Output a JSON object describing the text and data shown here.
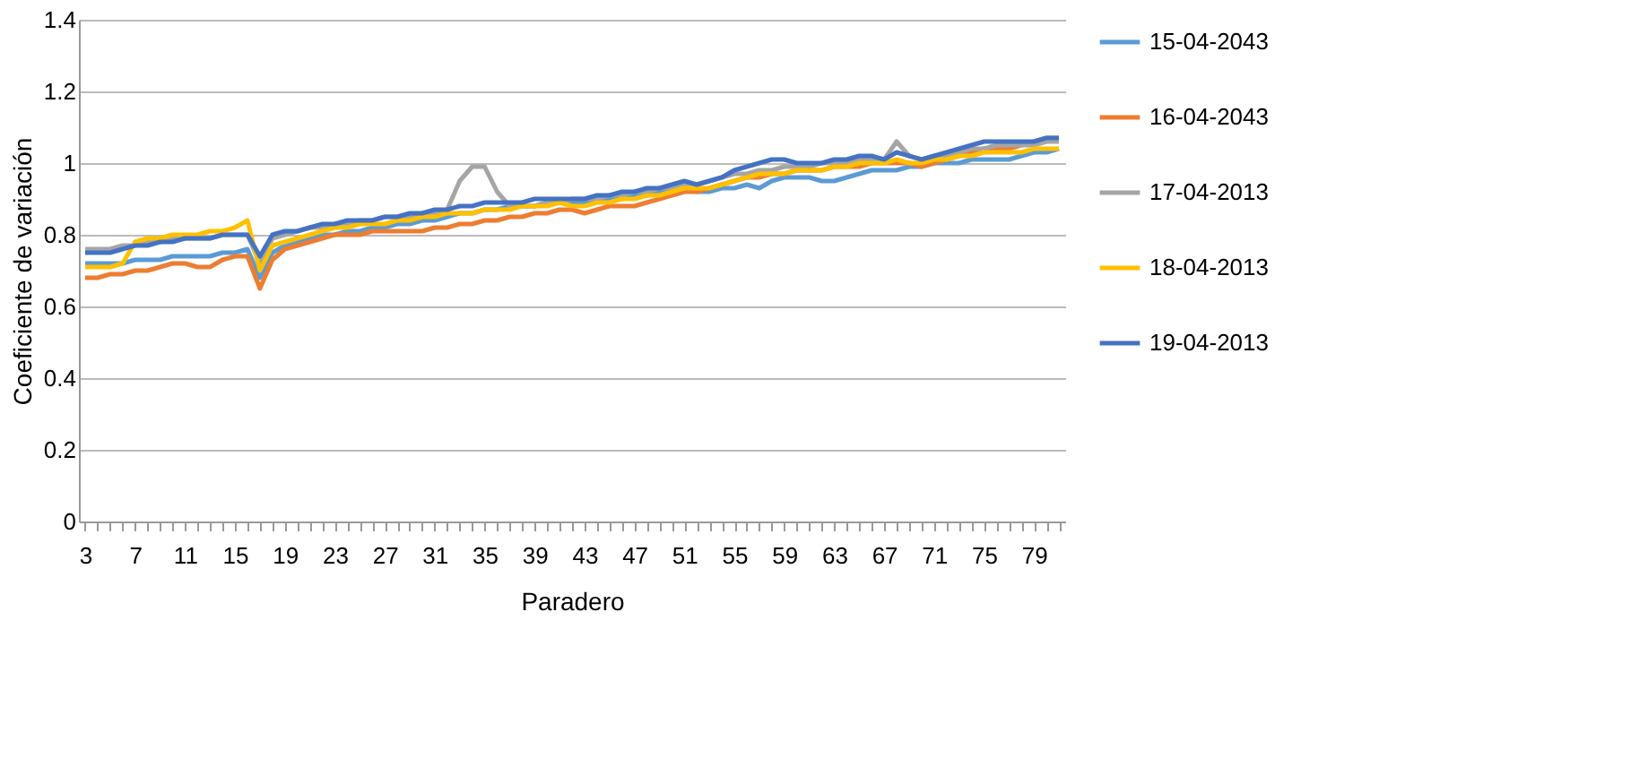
{
  "chart_data": {
    "type": "line",
    "xlabel": "Paradero",
    "ylabel": "Coeficiente de variación",
    "categories": [
      "3",
      null,
      null,
      null,
      "7",
      null,
      null,
      null,
      "11",
      null,
      null,
      null,
      "15",
      null,
      null,
      null,
      "19",
      null,
      null,
      null,
      "23",
      null,
      null,
      null,
      "27",
      null,
      null,
      null,
      "31",
      null,
      null,
      null,
      "35",
      null,
      null,
      null,
      "39",
      null,
      null,
      null,
      "43",
      null,
      null,
      null,
      "47",
      null,
      null,
      null,
      "51",
      null,
      null,
      null,
      "55",
      null,
      null,
      null,
      "59",
      null,
      null,
      null,
      "63",
      null,
      null,
      null,
      "67",
      null,
      null,
      null,
      "71",
      null,
      null,
      null,
      "75",
      null,
      null,
      null,
      "79",
      null,
      null
    ],
    "ylim": [
      0,
      1.4
    ],
    "yticks": [
      0,
      0.2,
      0.4,
      0.6,
      0.8,
      1,
      1.2,
      1.4
    ],
    "grid": "y",
    "legend": "right",
    "line_style": "solid",
    "marker": "none",
    "series": [
      {
        "name": "15-04-2043",
        "color": "#5b9bd5",
        "values": [
          0.72,
          0.72,
          0.72,
          0.72,
          0.73,
          0.73,
          0.73,
          0.74,
          0.74,
          0.74,
          0.74,
          0.75,
          0.75,
          0.76,
          0.68,
          0.75,
          0.77,
          0.78,
          0.79,
          0.8,
          0.8,
          0.81,
          0.81,
          0.82,
          0.82,
          0.83,
          0.83,
          0.84,
          0.84,
          0.85,
          0.86,
          0.86,
          0.87,
          0.87,
          0.88,
          0.88,
          0.88,
          0.89,
          0.89,
          0.89,
          0.89,
          0.9,
          0.9,
          0.9,
          0.91,
          0.91,
          0.92,
          0.92,
          0.93,
          0.92,
          0.92,
          0.93,
          0.93,
          0.94,
          0.93,
          0.95,
          0.96,
          0.96,
          0.96,
          0.95,
          0.95,
          0.96,
          0.97,
          0.98,
          0.98,
          0.98,
          0.99,
          0.99,
          1.0,
          1.0,
          1.0,
          1.01,
          1.01,
          1.01,
          1.01,
          1.02,
          1.03,
          1.03,
          1.04
        ]
      },
      {
        "name": "16-04-2043",
        "color": "#ed7d31",
        "values": [
          0.68,
          0.68,
          0.69,
          0.69,
          0.7,
          0.7,
          0.71,
          0.72,
          0.72,
          0.71,
          0.71,
          0.73,
          0.74,
          0.74,
          0.65,
          0.73,
          0.76,
          0.77,
          0.78,
          0.79,
          0.8,
          0.8,
          0.8,
          0.81,
          0.81,
          0.81,
          0.81,
          0.81,
          0.82,
          0.82,
          0.83,
          0.83,
          0.84,
          0.84,
          0.85,
          0.85,
          0.86,
          0.86,
          0.87,
          0.87,
          0.86,
          0.87,
          0.88,
          0.88,
          0.88,
          0.89,
          0.9,
          0.91,
          0.92,
          0.92,
          0.93,
          0.94,
          0.95,
          0.96,
          0.96,
          0.97,
          0.97,
          0.98,
          0.98,
          0.98,
          0.99,
          0.99,
          0.99,
          1.0,
          1.0,
          1.0,
          1.0,
          0.99,
          1.0,
          1.01,
          1.02,
          1.03,
          1.04,
          1.04,
          1.04,
          1.05,
          1.06,
          1.07,
          1.07
        ]
      },
      {
        "name": "17-04-2013",
        "color": "#a5a5a5",
        "values": [
          0.76,
          0.76,
          0.76,
          0.77,
          0.77,
          0.78,
          0.78,
          0.79,
          0.79,
          0.79,
          0.79,
          0.8,
          0.8,
          0.8,
          0.72,
          0.79,
          0.8,
          0.81,
          0.82,
          0.82,
          0.83,
          0.83,
          0.84,
          0.84,
          0.85,
          0.85,
          0.85,
          0.86,
          0.86,
          0.87,
          0.95,
          0.99,
          0.99,
          0.92,
          0.88,
          0.88,
          0.88,
          0.89,
          0.89,
          0.9,
          0.9,
          0.9,
          0.91,
          0.91,
          0.92,
          0.92,
          0.93,
          0.93,
          0.94,
          0.94,
          0.95,
          0.96,
          0.97,
          0.97,
          0.98,
          0.98,
          0.99,
          0.99,
          0.99,
          1.0,
          1.0,
          1.0,
          1.01,
          1.01,
          1.01,
          1.06,
          1.02,
          1.01,
          1.02,
          1.02,
          1.03,
          1.04,
          1.04,
          1.05,
          1.05,
          1.05,
          1.05,
          1.06,
          1.06
        ]
      },
      {
        "name": "18-04-2013",
        "color": "#ffc000",
        "values": [
          0.71,
          0.71,
          0.71,
          0.72,
          0.78,
          0.79,
          0.79,
          0.8,
          0.8,
          0.8,
          0.81,
          0.81,
          0.82,
          0.84,
          0.7,
          0.77,
          0.78,
          0.79,
          0.8,
          0.81,
          0.82,
          0.82,
          0.83,
          0.83,
          0.83,
          0.84,
          0.84,
          0.85,
          0.85,
          0.86,
          0.86,
          0.86,
          0.87,
          0.87,
          0.87,
          0.88,
          0.88,
          0.88,
          0.89,
          0.88,
          0.88,
          0.89,
          0.89,
          0.9,
          0.9,
          0.91,
          0.91,
          0.92,
          0.93,
          0.93,
          0.93,
          0.94,
          0.95,
          0.96,
          0.97,
          0.97,
          0.97,
          0.98,
          0.98,
          0.98,
          0.99,
          0.99,
          1.0,
          1.0,
          1.0,
          1.01,
          1.0,
          1.0,
          1.01,
          1.01,
          1.02,
          1.02,
          1.03,
          1.03,
          1.03,
          1.03,
          1.04,
          1.04,
          1.04
        ]
      },
      {
        "name": "19-04-2013",
        "color": "#4472c4",
        "values": [
          0.75,
          0.75,
          0.75,
          0.76,
          0.77,
          0.77,
          0.78,
          0.78,
          0.79,
          0.79,
          0.79,
          0.8,
          0.8,
          0.8,
          0.74,
          0.8,
          0.81,
          0.81,
          0.82,
          0.83,
          0.83,
          0.84,
          0.84,
          0.84,
          0.85,
          0.85,
          0.86,
          0.86,
          0.87,
          0.87,
          0.88,
          0.88,
          0.89,
          0.89,
          0.89,
          0.89,
          0.9,
          0.9,
          0.9,
          0.9,
          0.9,
          0.91,
          0.91,
          0.92,
          0.92,
          0.93,
          0.93,
          0.94,
          0.95,
          0.94,
          0.95,
          0.96,
          0.98,
          0.99,
          1.0,
          1.01,
          1.01,
          1.0,
          1.0,
          1.0,
          1.01,
          1.01,
          1.02,
          1.02,
          1.01,
          1.03,
          1.02,
          1.01,
          1.02,
          1.03,
          1.04,
          1.05,
          1.06,
          1.06,
          1.06,
          1.06,
          1.06,
          1.07,
          1.07
        ]
      }
    ]
  }
}
